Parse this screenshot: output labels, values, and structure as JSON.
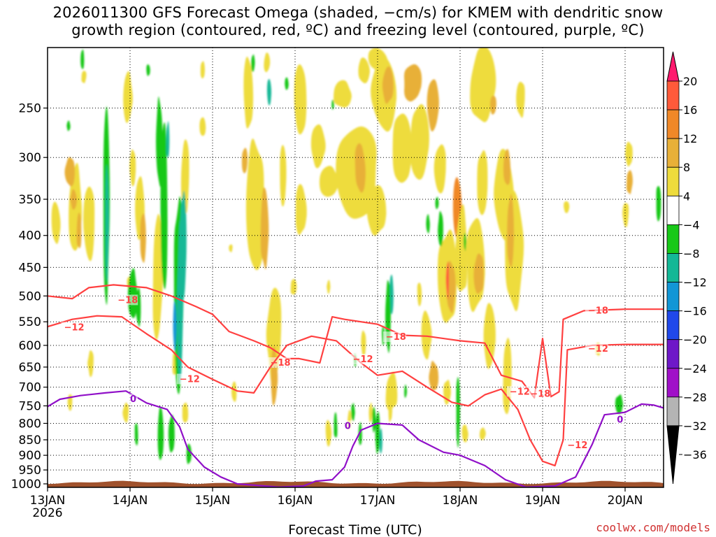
{
  "chart_data": {
    "type": "heatmap",
    "title": [
      "2026011300 GFS Forecast Omega (shaded, −cm/s) for KMEM with dendritic snow",
      "growth region (contoured, red, ºC) and freezing level (contoured, purple, ºC)"
    ],
    "xlabel": "Forecast Time (UTC)",
    "ylabel": "",
    "credit": "coolwx.com/models",
    "x_ticks": [
      "13JAN",
      "14JAN",
      "15JAN",
      "16JAN",
      "17JAN",
      "18JAN",
      "19JAN",
      "20JAN"
    ],
    "x_year": "2026",
    "x_range_days": [
      0,
      7.6
    ],
    "y_ticks": [
      250,
      300,
      350,
      400,
      450,
      500,
      550,
      600,
      650,
      700,
      750,
      800,
      850,
      900,
      950,
      1000
    ],
    "y_range_hpa": [
      200,
      1013
    ],
    "colorbar": {
      "ticks": [
        "20",
        "16",
        "12",
        "8",
        "4",
        "−4",
        "−8",
        "−12",
        "−16",
        "−20",
        "−24",
        "−28",
        "−32",
        "−36"
      ],
      "colors": [
        "#ff1a6e",
        "#ff5a3a",
        "#f08828",
        "#e8b038",
        "#eedc3c",
        "#ffffff",
        "#18c818",
        "#14b896",
        "#1296d6",
        "#2048ea",
        "#6e18c8",
        "#a010c8",
        "#b4b4b4",
        "#000000"
      ]
    },
    "series": [
      {
        "name": "-18",
        "color": "#ff4040",
        "label": "−18",
        "points": [
          [
            0,
            500
          ],
          [
            0.3,
            505
          ],
          [
            0.5,
            485
          ],
          [
            0.8,
            480
          ],
          [
            1.2,
            485
          ],
          [
            1.5,
            500
          ],
          [
            1.8,
            520
          ],
          [
            2.0,
            535
          ],
          [
            2.2,
            570
          ],
          [
            2.5,
            590
          ],
          [
            2.7,
            605
          ],
          [
            2.9,
            630
          ],
          [
            3.05,
            630
          ],
          [
            3.3,
            640
          ],
          [
            3.45,
            540
          ],
          [
            3.6,
            545
          ],
          [
            4.0,
            555
          ],
          [
            4.3,
            578
          ],
          [
            4.6,
            580
          ],
          [
            5.0,
            590
          ],
          [
            5.3,
            595
          ],
          [
            5.5,
            670
          ],
          [
            5.75,
            685
          ],
          [
            5.9,
            728
          ],
          [
            6.0,
            585
          ],
          [
            6.1,
            725
          ],
          [
            6.2,
            712
          ],
          [
            6.25,
            545
          ],
          [
            6.5,
            528
          ],
          [
            7.0,
            525
          ],
          [
            7.6,
            525
          ]
        ],
        "label_at": [
          [
            0.85,
            508
          ],
          [
            2.7,
            640
          ],
          [
            4.1,
            582
          ],
          [
            5.85,
            718
          ],
          [
            6.55,
            528
          ]
        ]
      },
      {
        "name": "-12",
        "color": "#ff4040",
        "label": "−12",
        "points": [
          [
            0,
            560
          ],
          [
            0.3,
            545
          ],
          [
            0.6,
            538
          ],
          [
            0.9,
            540
          ],
          [
            1.2,
            575
          ],
          [
            1.5,
            610
          ],
          [
            1.7,
            650
          ],
          [
            2.0,
            680
          ],
          [
            2.3,
            710
          ],
          [
            2.5,
            715
          ],
          [
            2.7,
            650
          ],
          [
            2.9,
            600
          ],
          [
            3.2,
            580
          ],
          [
            3.5,
            590
          ],
          [
            3.8,
            640
          ],
          [
            4.0,
            670
          ],
          [
            4.3,
            660
          ],
          [
            4.6,
            700
          ],
          [
            4.9,
            740
          ],
          [
            5.1,
            750
          ],
          [
            5.3,
            720
          ],
          [
            5.5,
            705
          ],
          [
            5.7,
            760
          ],
          [
            5.85,
            850
          ],
          [
            6.0,
            920
          ],
          [
            6.15,
            935
          ],
          [
            6.25,
            850
          ],
          [
            6.3,
            610
          ],
          [
            6.6,
            600
          ],
          [
            7.0,
            598
          ],
          [
            7.6,
            598
          ]
        ],
        "label_at": [
          [
            0.2,
            562
          ],
          [
            1.6,
            680
          ],
          [
            3.7,
            632
          ],
          [
            5.6,
            712
          ],
          [
            6.3,
            868
          ],
          [
            6.55,
            608
          ]
        ]
      },
      {
        "name": "0",
        "color": "#9010c8",
        "label": "0",
        "points": [
          [
            0,
            752
          ],
          [
            0.15,
            732
          ],
          [
            0.4,
            722
          ],
          [
            0.7,
            715
          ],
          [
            0.95,
            710
          ],
          [
            1.2,
            742
          ],
          [
            1.45,
            760
          ],
          [
            1.6,
            810
          ],
          [
            1.7,
            880
          ],
          [
            1.9,
            940
          ],
          [
            2.1,
            975
          ],
          [
            2.3,
            1000
          ],
          [
            2.8,
            1012
          ],
          [
            3.1,
            1008
          ],
          [
            3.25,
            990
          ],
          [
            3.45,
            985
          ],
          [
            3.6,
            940
          ],
          [
            3.7,
            870
          ],
          [
            3.8,
            820
          ],
          [
            4.0,
            800
          ],
          [
            4.3,
            805
          ],
          [
            4.5,
            850
          ],
          [
            4.8,
            890
          ],
          [
            5.0,
            900
          ],
          [
            5.3,
            935
          ],
          [
            5.55,
            985
          ],
          [
            5.8,
            1012
          ],
          [
            6.15,
            1008
          ],
          [
            6.4,
            975
          ],
          [
            6.6,
            865
          ],
          [
            6.75,
            775
          ],
          [
            7.0,
            768
          ],
          [
            7.2,
            745
          ],
          [
            7.35,
            748
          ],
          [
            7.6,
            765
          ]
        ],
        "label_at": [
          [
            1.0,
            732
          ],
          [
            3.6,
            808
          ],
          [
            6.9,
            790
          ]
        ]
      }
    ]
  }
}
